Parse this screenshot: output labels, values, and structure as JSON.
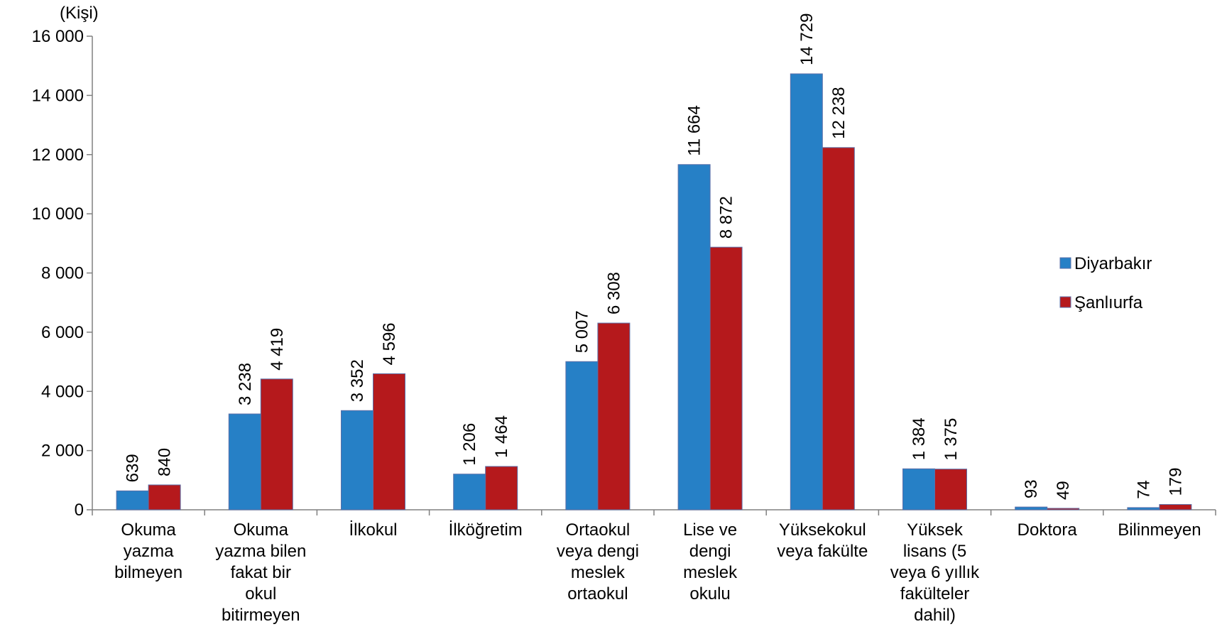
{
  "chart_data": {
    "type": "bar",
    "unit_label": "(Kişi)",
    "categories": [
      [
        "Okuma",
        "yazma",
        "bilmeyen"
      ],
      [
        "Okuma",
        "yazma bilen",
        "fakat bir",
        "okul",
        "bitirmeyen"
      ],
      [
        "İlkokul"
      ],
      [
        "İlköğretim"
      ],
      [
        "Ortaokul",
        "veya dengi",
        "meslek",
        "ortaokul"
      ],
      [
        "Lise ve",
        "dengi",
        "meslek",
        "okulu"
      ],
      [
        "Yüksekokul",
        "veya fakülte"
      ],
      [
        "Yüksek",
        "lisans (5",
        "veya 6 yıllık",
        "fakülteler",
        "dahil)"
      ],
      [
        "Doktora"
      ],
      [
        "Bilinmeyen"
      ]
    ],
    "series": [
      {
        "name": "Diyarbakır",
        "color": "#2680C6",
        "values": [
          639,
          3238,
          3352,
          1206,
          5007,
          11664,
          14729,
          1384,
          93,
          74
        ],
        "labels": [
          "639",
          "3 238",
          "3 352",
          "1 206",
          "5 007",
          "11 664",
          "14 729",
          "1 384",
          "93",
          "74"
        ]
      },
      {
        "name": "Şanlıurfa",
        "color": "#B5191C",
        "values": [
          840,
          4419,
          4596,
          1464,
          6308,
          8872,
          12238,
          1375,
          49,
          179
        ],
        "labels": [
          "840",
          "4 419",
          "4 596",
          "1 464",
          "6 308",
          "8 872",
          "12 238",
          "1 375",
          "49",
          "179"
        ]
      }
    ],
    "ylim": [
      0,
      16000
    ],
    "yticks": [
      0,
      2000,
      4000,
      6000,
      8000,
      10000,
      12000,
      14000,
      16000
    ],
    "ytick_labels": [
      "0",
      "2 000",
      "4 000",
      "6 000",
      "8 000",
      "10 000",
      "12 000",
      "14 000",
      "16 000"
    ],
    "legend_position": "right",
    "grid": false
  }
}
